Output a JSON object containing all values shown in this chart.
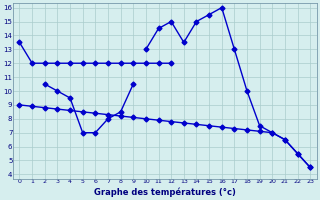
{
  "bg_color": "#d6eeee",
  "line_color": "#0000cc",
  "grid_color": "#aacccc",
  "xlabel": "Graphe des températures (°c)",
  "curve1_x": [
    0,
    1,
    2,
    3,
    4,
    5,
    6,
    7,
    8,
    9,
    10,
    11,
    12
  ],
  "curve1_y": [
    13.5,
    12.0,
    12.0,
    12.0,
    12.0,
    12.0,
    12.0,
    12.0,
    12.0,
    12.0,
    12.0,
    12.0,
    12.0
  ],
  "curve2_x": [
    10,
    11,
    12,
    13,
    14,
    15,
    16,
    17,
    18,
    19,
    20,
    21,
    22,
    23
  ],
  "curve2_y": [
    13.0,
    14.5,
    15.0,
    13.5,
    15.0,
    15.5,
    16.0,
    13.0,
    10.0,
    7.5,
    7.0,
    6.5,
    5.5,
    4.5
  ],
  "curve3_x": [
    2,
    3,
    4,
    5,
    6,
    7,
    8,
    9
  ],
  "curve3_y": [
    10.5,
    10.0,
    9.5,
    7.0,
    7.0,
    8.0,
    8.5,
    10.5
  ],
  "curve4_x": [
    0,
    1,
    2,
    3,
    4,
    5,
    6,
    7,
    8,
    9,
    10,
    11,
    12,
    13,
    14,
    15,
    16,
    17,
    18,
    19,
    20,
    21,
    22,
    23
  ],
  "curve4_y": [
    9.0,
    8.9,
    8.8,
    8.7,
    8.6,
    8.5,
    8.4,
    8.3,
    8.2,
    8.1,
    8.0,
    7.9,
    7.8,
    7.7,
    7.6,
    7.5,
    7.4,
    7.3,
    7.2,
    7.1,
    7.0,
    6.5,
    5.5,
    4.5
  ],
  "ylim_min": 4,
  "ylim_max": 16,
  "xlim_min": 0,
  "xlim_max": 23,
  "yticks": [
    4,
    5,
    6,
    7,
    8,
    9,
    10,
    11,
    12,
    13,
    14,
    15,
    16
  ],
  "xticks": [
    0,
    1,
    2,
    3,
    4,
    5,
    6,
    7,
    8,
    9,
    10,
    11,
    12,
    13,
    14,
    15,
    16,
    17,
    18,
    19,
    20,
    21,
    22,
    23
  ]
}
